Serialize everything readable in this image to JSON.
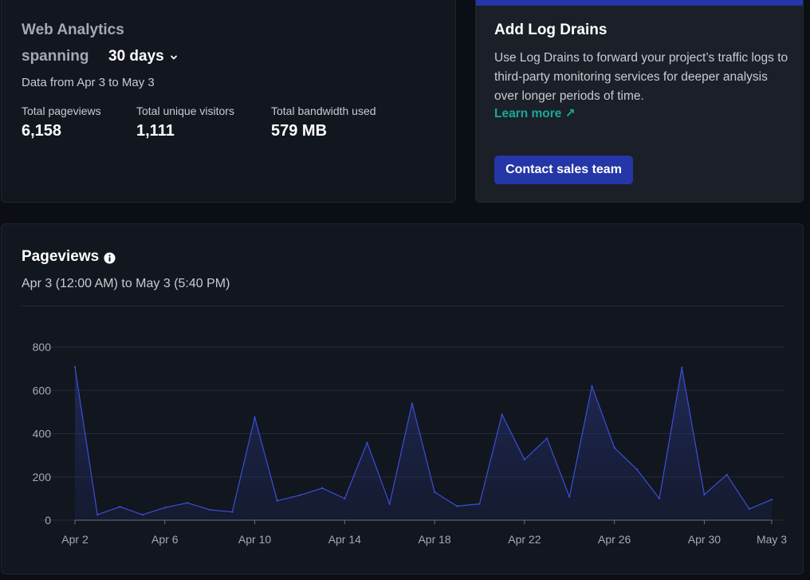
{
  "analytics": {
    "title": "Web Analytics",
    "spanning_label": "spanning",
    "range_value": "30 days",
    "data_range": "Data from Apr 3 to May 3",
    "stats": [
      {
        "label": "Total pageviews",
        "value": "6,158"
      },
      {
        "label": "Total unique visitors",
        "value": "1,111"
      },
      {
        "label": "Total bandwidth used",
        "value": "579 MB"
      }
    ]
  },
  "drains": {
    "title": "Add Log Drains",
    "body": "Use Log Drains to forward your project’s traffic logs to third-party monitoring services for deeper analysis over longer periods of time.",
    "link_label": "Learn more ↗",
    "button_label": "Contact sales team",
    "accent_color": "#2536a8",
    "link_color": "#1aa89a"
  },
  "pageviews": {
    "title": "Pageviews",
    "subtitle": "Apr 3 (12:00 AM) to May 3 (5:40 PM)"
  },
  "chart_data": {
    "type": "area",
    "title": "Pageviews",
    "xlabel": "",
    "ylabel": "",
    "ylim": [
      0,
      800
    ],
    "yticks": [
      0,
      200,
      400,
      600,
      800
    ],
    "xtick_labels": [
      "Apr 2",
      "Apr 6",
      "Apr 10",
      "Apr 14",
      "Apr 18",
      "Apr 22",
      "Apr 26",
      "Apr 30",
      "May 3"
    ],
    "x": [
      "Apr 2",
      "Apr 3",
      "Apr 4",
      "Apr 5",
      "Apr 6",
      "Apr 7",
      "Apr 8",
      "Apr 9",
      "Apr 10",
      "Apr 11",
      "Apr 12",
      "Apr 13",
      "Apr 14",
      "Apr 15",
      "Apr 16",
      "Apr 17",
      "Apr 18",
      "Apr 19",
      "Apr 20",
      "Apr 21",
      "Apr 22",
      "Apr 23",
      "Apr 24",
      "Apr 25",
      "Apr 26",
      "Apr 27",
      "Apr 28",
      "Apr 29",
      "Apr 30",
      "May 1",
      "May 2",
      "May 3"
    ],
    "series": [
      {
        "values": [
          708,
          25,
          62,
          25,
          58,
          80,
          48,
          38,
          475,
          90,
          115,
          148,
          100,
          358,
          75,
          540,
          130,
          65,
          75,
          488,
          280,
          378,
          108,
          620,
          335,
          235,
          100,
          705,
          118,
          210,
          52,
          95
        ]
      }
    ],
    "grid": true,
    "line_color": "#3a4fd8"
  }
}
